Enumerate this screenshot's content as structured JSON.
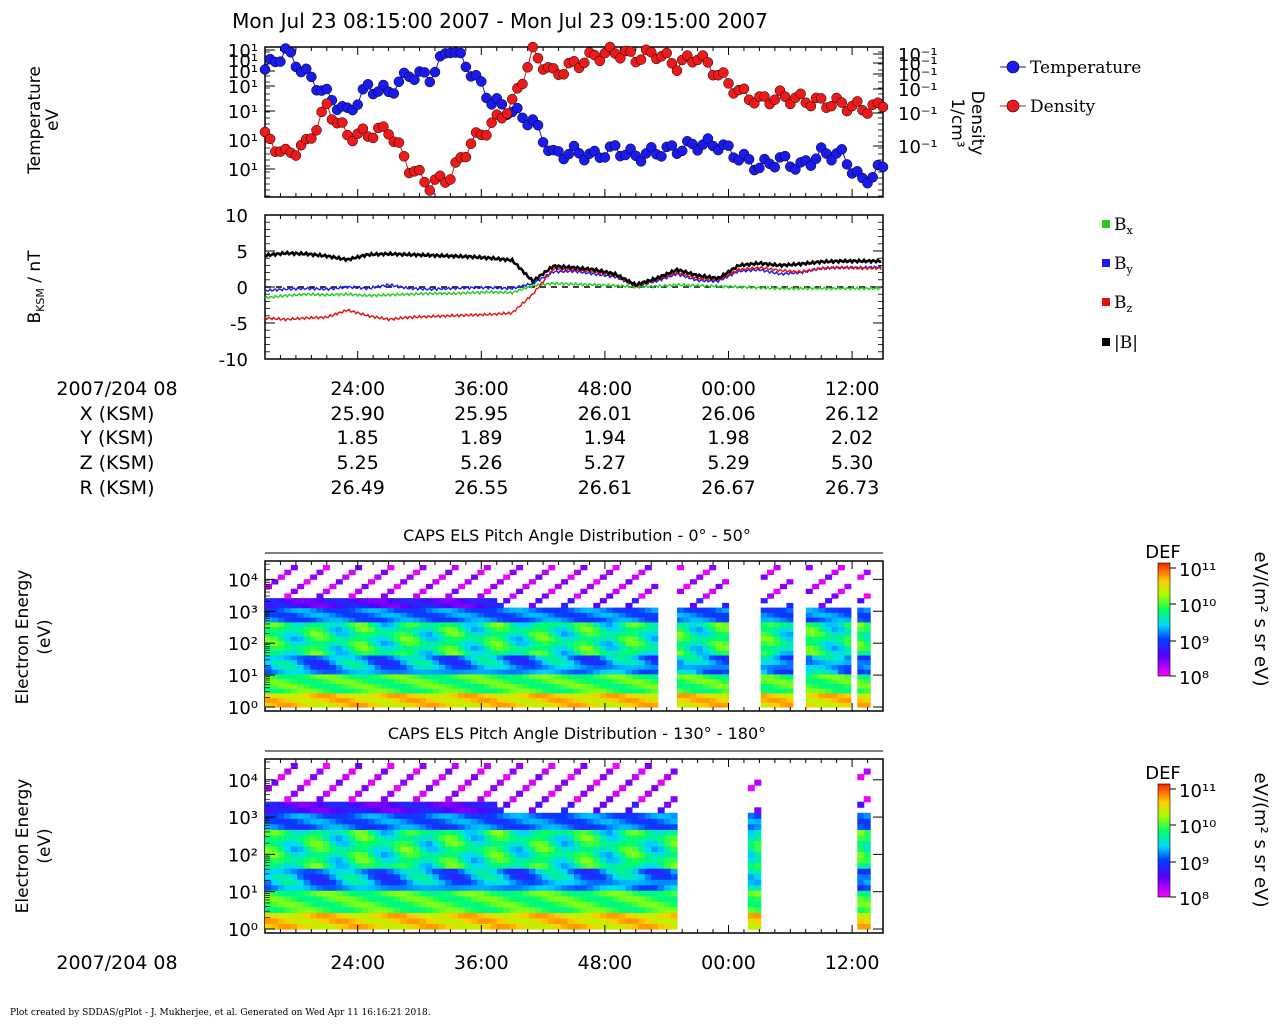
{
  "page": {
    "title": "Mon Jul 23 08:15:00 2007 - Mon Jul 23 09:15:00 2007",
    "footer": "Plot created by SDDAS/gPlot - J. Mukherjee, et al.  Generated on Wed Apr 11 16:16:21 2018."
  },
  "ephemeris": {
    "labels": [
      "2007/204 08",
      "X (KSM)",
      "Y (KSM)",
      "Z (KSM)",
      "R (KSM)"
    ],
    "columns": [
      [
        "24:00",
        "25.90",
        "1.85",
        "5.25",
        "26.49"
      ],
      [
        "36:00",
        "25.95",
        "1.89",
        "5.26",
        "26.55"
      ],
      [
        "48:00",
        "26.01",
        "1.94",
        "5.27",
        "26.61"
      ],
      [
        "00:00",
        "26.06",
        "1.98",
        "5.29",
        "26.67"
      ],
      [
        "12:00",
        "26.12",
        "2.02",
        "5.30",
        "26.73"
      ]
    ],
    "bottom_label": "2007/204 08",
    "bottom_ticks": [
      "24:00",
      "36:00",
      "48:00",
      "00:00",
      "12:00"
    ]
  },
  "colors": {
    "temperature": "#1010cc",
    "density": "#dd1111",
    "bx": "#22cc22",
    "by": "#1a1aee",
    "bz": "#e01010",
    "bmag": "#000000"
  },
  "chart_data": [
    {
      "type": "line",
      "ylabel": "Temperature\neV",
      "y2label": "Density\n1/cm³",
      "yticks": [
        "10¹",
        "10¹",
        "10¹",
        "10¹",
        "10¹",
        "10¹",
        "10¹"
      ],
      "y2ticks": [
        "10⁻¹",
        "10⁻¹",
        "10⁻¹",
        "10⁻¹",
        "10⁻¹",
        "10⁻¹"
      ],
      "x_minutes": [
        0,
        2,
        4,
        6,
        8,
        10,
        12,
        14,
        16,
        18,
        20,
        22,
        24,
        26,
        28,
        30,
        32,
        34,
        36,
        38,
        40,
        42,
        44,
        46,
        48,
        50,
        52,
        54,
        56,
        58,
        60
      ],
      "series": [
        {
          "name": "Temperature",
          "values": [
            0.85,
            0.97,
            0.82,
            0.68,
            0.56,
            0.73,
            0.7,
            0.82,
            0.8,
            1.0,
            0.84,
            0.64,
            0.57,
            0.5,
            0.28,
            0.3,
            0.27,
            0.32,
            0.27,
            0.3,
            0.32,
            0.35,
            0.35,
            0.27,
            0.2,
            0.25,
            0.2,
            0.29,
            0.28,
            0.1,
            0.2
          ]
        },
        {
          "name": "Density",
          "values": [
            0.4,
            0.28,
            0.35,
            0.6,
            0.41,
            0.42,
            0.45,
            0.2,
            0.08,
            0.14,
            0.36,
            0.48,
            0.62,
            0.96,
            0.82,
            0.88,
            0.94,
            0.97,
            0.93,
            0.96,
            0.88,
            0.94,
            0.82,
            0.7,
            0.64,
            0.67,
            0.65,
            0.63,
            0.62,
            0.59,
            0.6
          ]
        }
      ],
      "legend": "right"
    },
    {
      "type": "line",
      "ylabel": "BKSM / nT",
      "ylim": [
        -10,
        10
      ],
      "yticks": [
        10,
        5,
        0,
        -5,
        -10
      ],
      "x_minutes": [
        0,
        2,
        4,
        6,
        8,
        10,
        12,
        14,
        16,
        18,
        20,
        22,
        24,
        26,
        28,
        30,
        32,
        34,
        36,
        38,
        40,
        42,
        44,
        46,
        48,
        50,
        52,
        54,
        56,
        58,
        60
      ],
      "series": [
        {
          "name": "Bx",
          "values": [
            -1.5,
            -1.2,
            -1.0,
            -1.1,
            -1.0,
            -1.2,
            -1.1,
            -1.0,
            -0.9,
            -0.9,
            -0.8,
            -0.7,
            -0.8,
            0.2,
            0.5,
            0.4,
            0.3,
            0.2,
            0.0,
            0.1,
            0.3,
            0.2,
            0.1,
            0.0,
            -0.1,
            -0.2,
            -0.2,
            -0.2,
            -0.2,
            -0.2,
            -0.2
          ]
        },
        {
          "name": "By",
          "values": [
            -0.5,
            -0.3,
            -0.2,
            -0.3,
            0.0,
            -0.2,
            0.3,
            -0.2,
            -0.3,
            -0.2,
            -0.1,
            -0.1,
            -0.2,
            0.5,
            2.1,
            2.2,
            1.8,
            1.4,
            0.2,
            0.8,
            1.8,
            0.9,
            0.8,
            2.2,
            2.4,
            1.8,
            2.0,
            2.6,
            2.7,
            2.7,
            2.8
          ]
        },
        {
          "name": "Bz",
          "values": [
            -4.3,
            -4.5,
            -4.3,
            -4.2,
            -3.2,
            -4.0,
            -4.5,
            -4.2,
            -4.1,
            -4.0,
            -3.9,
            -3.8,
            -3.6,
            -1.0,
            2.5,
            2.4,
            2.1,
            1.6,
            0.1,
            1.0,
            2.0,
            1.2,
            1.0,
            2.4,
            2.7,
            2.3,
            2.1,
            2.6,
            2.7,
            2.6,
            2.6
          ]
        },
        {
          "name": "|B|",
          "values": [
            4.4,
            4.7,
            4.6,
            4.3,
            3.8,
            4.5,
            4.6,
            4.5,
            4.4,
            4.3,
            4.2,
            4.0,
            3.7,
            0.8,
            2.9,
            2.7,
            2.4,
            1.8,
            0.3,
            1.2,
            2.4,
            1.6,
            1.2,
            3.0,
            3.3,
            3.0,
            3.2,
            3.5,
            3.6,
            3.6,
            3.6
          ]
        }
      ],
      "legend": "right"
    },
    {
      "type": "heatmap",
      "title": "CAPS ELS Pitch Angle Distribution - 0° - 50°",
      "ylabel": "Electron Energy\n(eV)",
      "yticks": [
        "10⁰",
        "10¹",
        "10²",
        "10³",
        "10⁴"
      ],
      "colorbar": {
        "label": "DEF",
        "unit": "eV/(m² s sr eV)",
        "ticks": [
          "10¹¹",
          "10¹⁰",
          "10⁹",
          "10⁸"
        ]
      },
      "data_gaps_minutes": [
        [
          38,
          39.5
        ],
        [
          45,
          48
        ],
        [
          51,
          52.5
        ],
        [
          56.5,
          57.5
        ],
        [
          58.5,
          60
        ]
      ],
      "note_time_range_minutes": [
        0,
        60
      ]
    },
    {
      "type": "heatmap",
      "title": "CAPS ELS Pitch Angle Distribution - 130° - 180°",
      "ylabel": "Electron Energy\n(eV)",
      "yticks": [
        "10⁰",
        "10¹",
        "10²",
        "10³",
        "10⁴"
      ],
      "colorbar": {
        "label": "DEF",
        "unit": "eV/(m² s sr eV)",
        "ticks": [
          "10¹¹",
          "10¹⁰",
          "10⁹",
          "10⁸"
        ]
      },
      "data_gaps_minutes": [
        [
          40,
          46.5
        ],
        [
          48,
          57.5
        ],
        [
          58.5,
          60
        ]
      ]
    }
  ]
}
